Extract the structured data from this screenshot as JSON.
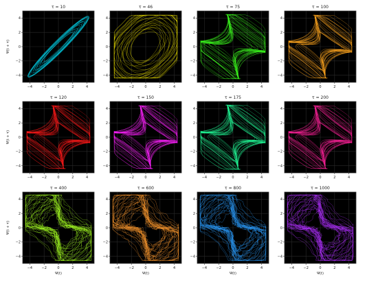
{
  "chart_data": [
    {
      "type": "scatter",
      "title": "τ = 10",
      "color": "#00e5ff",
      "xlabel": "",
      "ylabel": "Ψ(t + τ)",
      "xlim": [
        -5,
        5
      ],
      "ylim": [
        -5,
        5
      ],
      "grid": true,
      "style": "ellipse",
      "amp": 4.3,
      "turns": 18,
      "xticks": [
        -4,
        -2,
        0,
        2,
        4
      ],
      "yticks": [
        -4,
        -2,
        0,
        2,
        4
      ]
    },
    {
      "type": "scatter",
      "title": "τ = 46",
      "color": "#f2e600",
      "xlabel": "",
      "ylabel": "",
      "xlim": [
        -5,
        5
      ],
      "ylim": [
        -5,
        5
      ],
      "grid": true,
      "style": "rounded",
      "amp": 4.4,
      "turns": 26,
      "xticks": [
        -4,
        -2,
        0,
        2,
        4
      ],
      "yticks": [
        -4,
        -2,
        0,
        2,
        4
      ]
    },
    {
      "type": "scatter",
      "title": "τ = 75",
      "color": "#3cff1e",
      "xlabel": "",
      "ylabel": "",
      "xlim": [
        -5,
        5
      ],
      "ylim": [
        -5,
        5
      ],
      "grid": true,
      "style": "diamond",
      "amp": 4.5,
      "turns": 26,
      "xticks": [
        -4,
        -2,
        0,
        2,
        4
      ],
      "yticks": [
        -4,
        -2,
        0,
        2,
        4
      ]
    },
    {
      "type": "scatter",
      "title": "τ = 100",
      "color": "#ffa51e",
      "xlabel": "",
      "ylabel": "",
      "xlim": [
        -5,
        5
      ],
      "ylim": [
        -5,
        5
      ],
      "grid": true,
      "style": "diamond",
      "amp": 4.4,
      "turns": 28,
      "xticks": [
        -4,
        -2,
        0,
        2,
        4
      ],
      "yticks": [
        -4,
        -2,
        0,
        2,
        4
      ]
    },
    {
      "type": "scatter",
      "title": "τ = 120",
      "color": "#ff1a1a",
      "xlabel": "",
      "ylabel": "Ψ(t + τ)",
      "xlim": [
        -5,
        5
      ],
      "ylim": [
        -5,
        5
      ],
      "grid": true,
      "style": "diamond",
      "amp": 4.4,
      "turns": 28,
      "xticks": [
        -4,
        -2,
        0,
        2,
        4
      ],
      "yticks": [
        -4,
        -2,
        0,
        2,
        4
      ]
    },
    {
      "type": "scatter",
      "title": "τ = 150",
      "color": "#ff22ff",
      "xlabel": "",
      "ylabel": "",
      "xlim": [
        -5,
        5
      ],
      "ylim": [
        -5,
        5
      ],
      "grid": true,
      "style": "diamond",
      "amp": 4.4,
      "turns": 28,
      "xticks": [
        -4,
        -2,
        0,
        2,
        4
      ],
      "yticks": [
        -4,
        -2,
        0,
        2,
        4
      ]
    },
    {
      "type": "scatter",
      "title": "τ = 175",
      "color": "#22ff99",
      "xlabel": "",
      "ylabel": "",
      "xlim": [
        -5,
        5
      ],
      "ylim": [
        -5,
        5
      ],
      "grid": true,
      "style": "diamond",
      "amp": 4.5,
      "turns": 28,
      "xticks": [
        -4,
        -2,
        0,
        2,
        4
      ],
      "yticks": [
        -4,
        -2,
        0,
        2,
        4
      ]
    },
    {
      "type": "scatter",
      "title": "τ = 200",
      "color": "#ff2299",
      "xlabel": "",
      "ylabel": "",
      "xlim": [
        -5,
        5
      ],
      "ylim": [
        -5,
        5
      ],
      "grid": true,
      "style": "diamond",
      "amp": 4.4,
      "turns": 28,
      "xticks": [
        -4,
        -2,
        0,
        2,
        4
      ],
      "yticks": [
        -4,
        -2,
        0,
        2,
        4
      ]
    },
    {
      "type": "scatter",
      "title": "τ = 400",
      "color": "#a5ff22",
      "xlabel": "Ψ(t)",
      "ylabel": "Ψ(t + τ)",
      "xlim": [
        -5,
        5
      ],
      "ylim": [
        -5,
        5
      ],
      "grid": true,
      "style": "square",
      "amp": 4.6,
      "turns": 30,
      "xticks": [
        -4,
        -2,
        0,
        2,
        4
      ],
      "yticks": [
        -4,
        -2,
        0,
        2,
        4
      ]
    },
    {
      "type": "scatter",
      "title": "τ = 600",
      "color": "#ff9a2e",
      "xlabel": "Ψ(t)",
      "ylabel": "",
      "xlim": [
        -5,
        5
      ],
      "ylim": [
        -5,
        5
      ],
      "grid": true,
      "style": "square",
      "amp": 4.6,
      "turns": 30,
      "xticks": [
        -4,
        -2,
        0,
        2,
        4
      ],
      "yticks": [
        -4,
        -2,
        0,
        2,
        4
      ]
    },
    {
      "type": "scatter",
      "title": "τ = 800",
      "color": "#2a9dff",
      "xlabel": "Ψ(t)",
      "ylabel": "",
      "xlim": [
        -5,
        5
      ],
      "ylim": [
        -5,
        5
      ],
      "grid": true,
      "style": "square",
      "amp": 4.6,
      "turns": 30,
      "xticks": [
        -4,
        -2,
        0,
        2,
        4
      ],
      "yticks": [
        -4,
        -2,
        0,
        2,
        4
      ]
    },
    {
      "type": "scatter",
      "title": "τ = 1000",
      "color": "#b030ff",
      "xlabel": "Ψ(t)",
      "ylabel": "",
      "xlim": [
        -5,
        5
      ],
      "ylim": [
        -5,
        5
      ],
      "grid": true,
      "style": "square",
      "amp": 4.6,
      "turns": 30,
      "xticks": [
        -4,
        -2,
        0,
        2,
        4
      ],
      "yticks": [
        -4,
        -2,
        0,
        2,
        4
      ]
    }
  ],
  "colors": {
    "panel_background": "#000000",
    "grid": "#2a2a2a",
    "figure_background": "#ffffff",
    "text": "#222222"
  }
}
